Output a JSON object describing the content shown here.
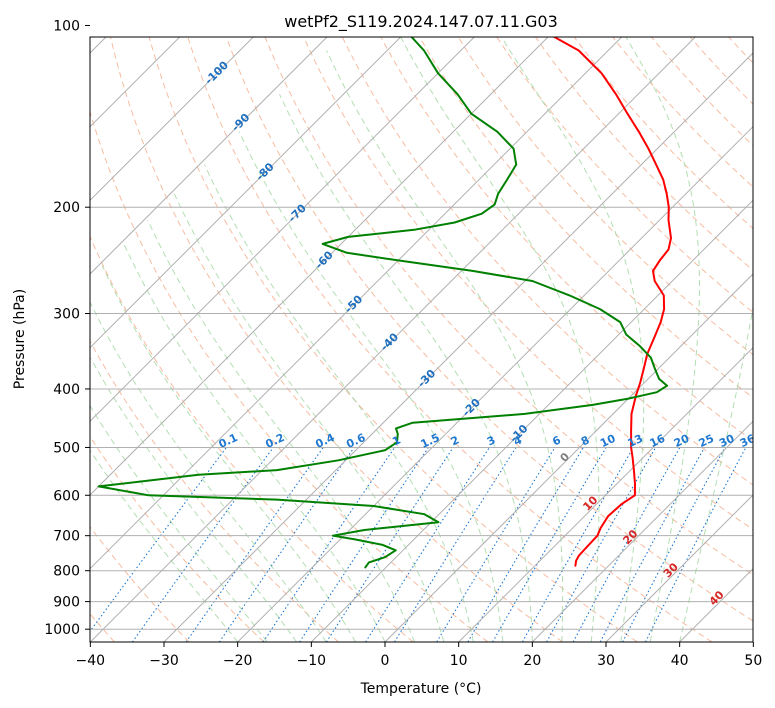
{
  "chart_data": {
    "type": "line",
    "diagram": "skew-T log-P",
    "title": "wetPf2_S119.2024.147.07.11.G03",
    "xlabel": "Temperature (°C)",
    "ylabel": "Pressure (hPa)",
    "xlim": [
      -40,
      50
    ],
    "ylim": [
      1050,
      100
    ],
    "yscale": "log",
    "grid": true,
    "x_ticks": [
      "−40",
      "−30",
      "−20",
      "−10",
      "0",
      "10",
      "20",
      "30",
      "40",
      "50"
    ],
    "y_ticks": [
      "100",
      "200",
      "300",
      "400",
      "500",
      "600",
      "700",
      "800",
      "900",
      "1000"
    ],
    "series": [
      {
        "color": "#ff0000",
        "points": [
          [
            785,
            15.5
          ],
          [
            770,
            14.9
          ],
          [
            755,
            14.6
          ],
          [
            730,
            14.5
          ],
          [
            700,
            14.4
          ],
          [
            680,
            13.8
          ],
          [
            650,
            13.2
          ],
          [
            620,
            13.4
          ],
          [
            600,
            14.0
          ],
          [
            575,
            12.5
          ],
          [
            550,
            10.8
          ],
          [
            520,
            8.6
          ],
          [
            500,
            7.0
          ],
          [
            470,
            4.8
          ],
          [
            440,
            2.5
          ],
          [
            410,
            0.6
          ],
          [
            390,
            -0.6
          ],
          [
            370,
            -2.0
          ],
          [
            350,
            -3.5
          ],
          [
            330,
            -4.7
          ],
          [
            310,
            -6.0
          ],
          [
            295,
            -7.3
          ],
          [
            280,
            -9.2
          ],
          [
            265,
            -12.4
          ],
          [
            255,
            -14.0
          ],
          [
            245,
            -14.5
          ],
          [
            235,
            -14.8
          ],
          [
            225,
            -16.0
          ],
          [
            210,
            -18.8
          ],
          [
            200,
            -20.5
          ],
          [
            190,
            -22.6
          ],
          [
            180,
            -25.0
          ],
          [
            170,
            -28.0
          ],
          [
            160,
            -31.2
          ],
          [
            150,
            -34.8
          ],
          [
            140,
            -38.8
          ],
          [
            130,
            -43.0
          ],
          [
            120,
            -47.8
          ],
          [
            110,
            -54.0
          ],
          [
            100,
            -63.5
          ]
        ]
      },
      {
        "color": "#008000",
        "points": [
          [
            790,
            -12.8
          ],
          [
            775,
            -13.0
          ],
          [
            760,
            -11.5
          ],
          [
            740,
            -11.0
          ],
          [
            725,
            -13.5
          ],
          [
            710,
            -18.0
          ],
          [
            700,
            -21.5
          ],
          [
            685,
            -18.0
          ],
          [
            665,
            -9.0
          ],
          [
            645,
            -12.0
          ],
          [
            625,
            -20.0
          ],
          [
            610,
            -34.0
          ],
          [
            600,
            -52.0
          ],
          [
            580,
            -60.0
          ],
          [
            555,
            -48.0
          ],
          [
            545,
            -38.0
          ],
          [
            525,
            -31.0
          ],
          [
            505,
            -26.0
          ],
          [
            490,
            -25.5
          ],
          [
            475,
            -26.5
          ],
          [
            465,
            -27.5
          ],
          [
            455,
            -26.0
          ],
          [
            440,
            -12.0
          ],
          [
            425,
            -4.0
          ],
          [
            415,
            0.0
          ],
          [
            405,
            3.0
          ],
          [
            395,
            3.5
          ],
          [
            385,
            1.5
          ],
          [
            370,
            -0.5
          ],
          [
            355,
            -2.5
          ],
          [
            340,
            -5.5
          ],
          [
            325,
            -9.0
          ],
          [
            310,
            -11.5
          ],
          [
            295,
            -16.0
          ],
          [
            280,
            -22.0
          ],
          [
            265,
            -29.0
          ],
          [
            255,
            -38.5
          ],
          [
            245,
            -50.0
          ],
          [
            238,
            -58.0
          ],
          [
            230,
            -62.5
          ],
          [
            224,
            -60.0
          ],
          [
            218,
            -52.0
          ],
          [
            212,
            -47.5
          ],
          [
            205,
            -45.0
          ],
          [
            198,
            -44.5
          ],
          [
            190,
            -45.5
          ],
          [
            180,
            -46.2
          ],
          [
            170,
            -47.0
          ],
          [
            160,
            -49.5
          ],
          [
            150,
            -54.0
          ],
          [
            140,
            -60.0
          ],
          [
            130,
            -64.5
          ],
          [
            120,
            -70.0
          ],
          [
            110,
            -75.0
          ],
          [
            100,
            -81.5
          ]
        ]
      }
    ],
    "isotherm_labels": [
      "-100",
      "-90",
      "-80",
      "-70",
      "-60",
      "-50",
      "-40",
      "-30",
      "-20",
      "-10"
    ],
    "mixing_ratio_labels": [
      "0.1",
      "0.2",
      "0.4",
      "0.6",
      "1",
      "1.5",
      "2",
      "3",
      "4",
      "6",
      "8",
      "10",
      "13",
      "16",
      "20",
      "25",
      "30",
      "36"
    ],
    "zero_isotherm_label": "0",
    "warm_isotherm_labels": [
      "10",
      "20",
      "30",
      "40"
    ],
    "colors": {
      "temperature": "#ff0000",
      "dewpoint": "#008000",
      "grid": "#b0b0b0",
      "dry_adiabat": "#f4a582",
      "moist_adiabat": "#a6d8a6",
      "mixing_ratio": "#1f78d0",
      "isotherm_label": "#1f6fbf",
      "warm_isotherm_label": "#d62728",
      "cold_hook": "#d8c3a5"
    }
  }
}
